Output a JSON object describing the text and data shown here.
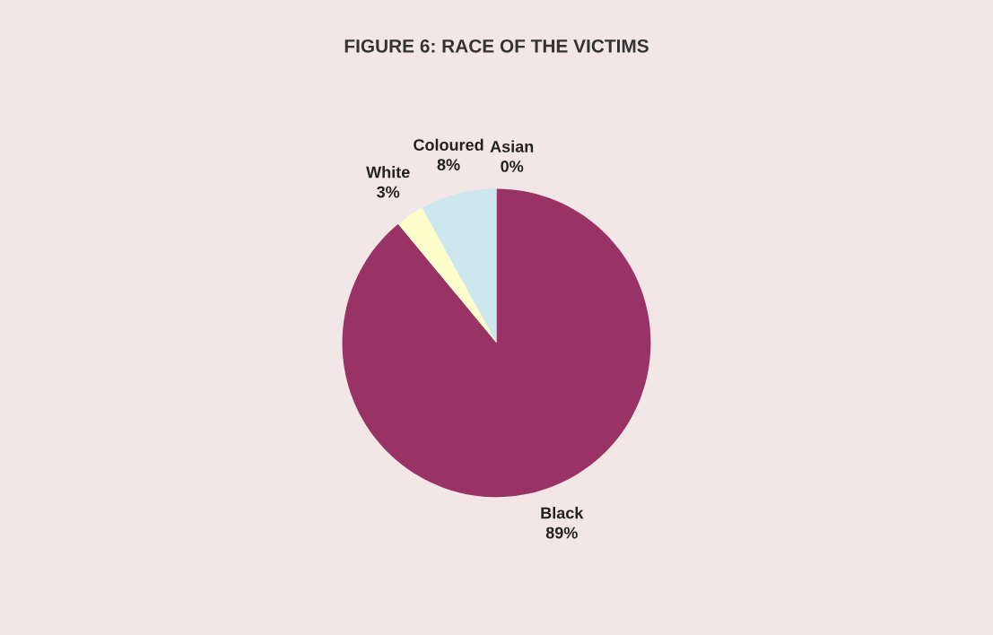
{
  "chart_data": {
    "type": "pie",
    "title": "FIGURE 6: RACE OF THE VICTIMS",
    "categories": [
      "Black",
      "White",
      "Coloured",
      "Asian"
    ],
    "values": [
      89,
      3,
      8,
      0
    ],
    "value_labels": [
      "89%",
      "3%",
      "8%",
      "0%"
    ],
    "colors": [
      "#993366",
      "#ffffcc",
      "#cce8ee",
      "#9999ff"
    ],
    "legend": false
  }
}
